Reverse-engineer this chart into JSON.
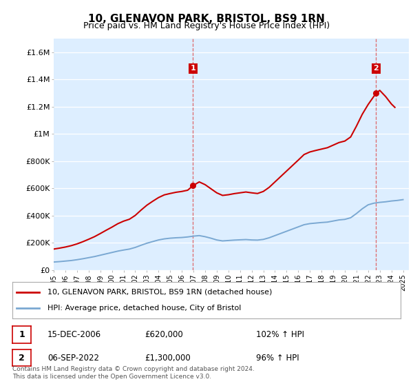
{
  "title": "10, GLENAVON PARK, BRISTOL, BS9 1RN",
  "subtitle": "Price paid vs. HM Land Registry's House Price Index (HPI)",
  "hpi_label": "HPI: Average price, detached house, City of Bristol",
  "property_label": "10, GLENAVON PARK, BRISTOL, BS9 1RN (detached house)",
  "annotation1": {
    "num": "1",
    "date": "15-DEC-2006",
    "price": "£620,000",
    "hpi": "102% ↑ HPI",
    "year": 2006.96
  },
  "annotation2": {
    "num": "2",
    "date": "06-SEP-2022",
    "price": "£1,300,000",
    "hpi": "96% ↑ HPI",
    "year": 2022.69
  },
  "footnote1": "Contains HM Land Registry data © Crown copyright and database right 2024.",
  "footnote2": "This data is licensed under the Open Government Licence v3.0.",
  "ylim": [
    0,
    1700000
  ],
  "yticks": [
    0,
    200000,
    400000,
    600000,
    800000,
    1000000,
    1200000,
    1400000,
    1600000
  ],
  "ytick_labels": [
    "£0",
    "£200K",
    "£400K",
    "£600K",
    "£800K",
    "£1M",
    "£1.2M",
    "£1.4M",
    "£1.6M"
  ],
  "property_color": "#cc0000",
  "hpi_color": "#7aa8d2",
  "background_color": "#ddeeff",
  "grid_color": "#ffffff",
  "title_fontsize": 11,
  "subtitle_fontsize": 9,
  "hpi_years": [
    1995.0,
    1995.5,
    1996.0,
    1996.5,
    1997.0,
    1997.5,
    1998.0,
    1998.5,
    1999.0,
    1999.5,
    2000.0,
    2000.5,
    2001.0,
    2001.5,
    2002.0,
    2002.5,
    2003.0,
    2003.5,
    2004.0,
    2004.5,
    2005.0,
    2005.5,
    2006.0,
    2006.5,
    2007.0,
    2007.5,
    2008.0,
    2008.5,
    2009.0,
    2009.5,
    2010.0,
    2010.5,
    2011.0,
    2011.5,
    2012.0,
    2012.5,
    2013.0,
    2013.5,
    2014.0,
    2014.5,
    2015.0,
    2015.5,
    2016.0,
    2016.5,
    2017.0,
    2017.5,
    2018.0,
    2018.5,
    2019.0,
    2019.5,
    2020.0,
    2020.5,
    2021.0,
    2021.5,
    2022.0,
    2022.5,
    2023.0,
    2023.5,
    2024.0,
    2024.5,
    2025.0
  ],
  "hpi_values": [
    60000,
    63000,
    67000,
    71000,
    77000,
    84000,
    92000,
    100000,
    110000,
    120000,
    130000,
    140000,
    148000,
    155000,
    167000,
    183000,
    198000,
    210000,
    222000,
    230000,
    235000,
    238000,
    240000,
    244000,
    250000,
    254000,
    246000,
    235000,
    222000,
    215000,
    218000,
    221000,
    223000,
    225000,
    222000,
    221000,
    226000,
    238000,
    254000,
    270000,
    286000,
    302000,
    318000,
    334000,
    342000,
    346000,
    350000,
    353000,
    361000,
    369000,
    373000,
    385000,
    416000,
    451000,
    480000,
    492000,
    498000,
    502000,
    508000,
    512000,
    518000
  ],
  "prop_years": [
    1995.0,
    1995.5,
    1996.0,
    1996.5,
    1997.0,
    1997.5,
    1998.0,
    1998.5,
    1999.0,
    1999.5,
    2000.0,
    2000.5,
    2001.0,
    2001.5,
    2002.0,
    2002.5,
    2003.0,
    2003.5,
    2004.0,
    2004.5,
    2005.0,
    2005.5,
    2006.0,
    2006.5,
    2006.96,
    2007.3,
    2007.5,
    2008.0,
    2008.5,
    2009.0,
    2009.5,
    2010.0,
    2010.5,
    2011.0,
    2011.5,
    2012.0,
    2012.5,
    2013.0,
    2013.5,
    2014.0,
    2014.5,
    2015.0,
    2015.5,
    2016.0,
    2016.5,
    2017.0,
    2017.5,
    2018.0,
    2018.5,
    2019.0,
    2019.5,
    2020.0,
    2020.5,
    2021.0,
    2021.5,
    2022.0,
    2022.69,
    2023.0,
    2023.5,
    2024.0,
    2024.3
  ],
  "prop_values": [
    155000,
    162000,
    170000,
    180000,
    193000,
    209000,
    227000,
    246000,
    269000,
    293000,
    316000,
    341000,
    360000,
    374000,
    402000,
    441000,
    477000,
    506000,
    533000,
    553000,
    563000,
    572000,
    578000,
    587000,
    620000,
    638000,
    648000,
    628000,
    598000,
    568000,
    549000,
    554000,
    562000,
    568000,
    574000,
    568000,
    563000,
    578000,
    608000,
    648000,
    688000,
    728000,
    768000,
    808000,
    849000,
    868000,
    879000,
    889000,
    899000,
    918000,
    937000,
    948000,
    978000,
    1058000,
    1145000,
    1216000,
    1300000,
    1320000,
    1275000,
    1220000,
    1195000
  ]
}
